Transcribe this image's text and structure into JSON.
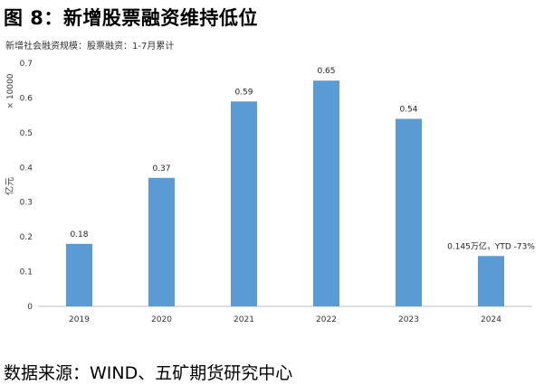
{
  "figure": {
    "title": "图 8：新增股票融资维持低位",
    "subtitle": "新增社会融资规模：股票融资：1-7月累计",
    "source": "数据来源：WIND、五矿期货研究中心"
  },
  "chart_data": {
    "type": "bar",
    "categories": [
      "2019",
      "2020",
      "2021",
      "2022",
      "2023",
      "2024"
    ],
    "values": [
      0.18,
      0.37,
      0.59,
      0.65,
      0.54,
      0.145
    ],
    "data_labels": [
      "0.18",
      "0.37",
      "0.59",
      "0.65",
      "0.54",
      "0.145万亿，YTD -73%"
    ],
    "ylim": [
      0,
      0.7
    ],
    "yticks": [
      0,
      0.1,
      0.2,
      0.3,
      0.4,
      0.5,
      0.6,
      0.7
    ],
    "ytick_labels": [
      "0",
      "0.1",
      "0.2",
      "0.3",
      "0.4",
      "0.5",
      "0.6",
      "0.7"
    ],
    "ylabel": "亿元",
    "scale_note": "× 10000",
    "grid": false,
    "bar_color": "#5B9BD5"
  }
}
